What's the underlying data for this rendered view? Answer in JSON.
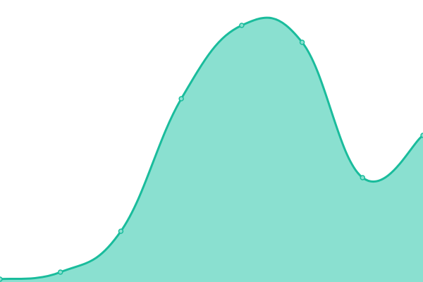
{
  "chart_data": {
    "type": "area",
    "curve": "smooth",
    "title": "",
    "xlabel": "",
    "ylabel": "",
    "axes_visible": false,
    "grid": false,
    "legend": "none",
    "x": [
      0,
      1,
      2,
      3,
      4,
      5,
      6,
      7
    ],
    "values": [
      1,
      3.5,
      18,
      65,
      91,
      85,
      37,
      52
    ],
    "ylim": [
      0,
      100
    ],
    "colors": {
      "line": "#1abc9c",
      "fill": "#8ae0d0",
      "marker_fill": "#8ae0d0"
    }
  }
}
